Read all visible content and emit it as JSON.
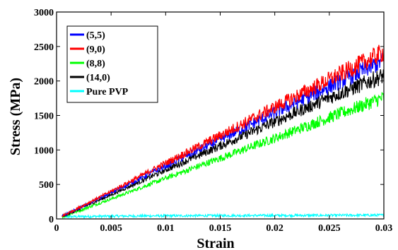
{
  "chart_data": {
    "type": "line",
    "xlabel": "Strain",
    "ylabel": "Stress (MPa)",
    "xlim": [
      0,
      0.03
    ],
    "ylim": [
      0,
      3000
    ],
    "xticks": [
      0,
      0.005,
      0.01,
      0.015,
      0.02,
      0.025,
      0.03
    ],
    "xtick_labels": [
      "0",
      "0.005",
      "0.01",
      "0.015",
      "0.02",
      "0.025",
      "0.03"
    ],
    "yticks": [
      0,
      500,
      1000,
      1500,
      2000,
      2500,
      3000
    ],
    "ytick_labels": [
      "0",
      "500",
      "1000",
      "1500",
      "2000",
      "2500",
      "3000"
    ],
    "grid": false,
    "legend_position": "top-left",
    "series": [
      {
        "name": "(5,5)",
        "color": "#0000ff",
        "x": [
          0,
          0.005,
          0.01,
          0.015,
          0.02,
          0.025,
          0.03
        ],
        "values": [
          0,
          380,
          770,
          1150,
          1540,
          1920,
          2300
        ]
      },
      {
        "name": "(9,0)",
        "color": "#ff0000",
        "x": [
          0,
          0.005,
          0.01,
          0.015,
          0.02,
          0.025,
          0.03
        ],
        "values": [
          0,
          400,
          810,
          1210,
          1620,
          2020,
          2420
        ]
      },
      {
        "name": "(8,8)",
        "color": "#00ff00",
        "x": [
          0,
          0.005,
          0.01,
          0.015,
          0.02,
          0.025,
          0.03
        ],
        "values": [
          0,
          290,
          590,
          880,
          1170,
          1470,
          1760
        ]
      },
      {
        "name": "(14,0)",
        "color": "#000000",
        "x": [
          0,
          0.005,
          0.01,
          0.015,
          0.02,
          0.025,
          0.03
        ],
        "values": [
          0,
          350,
          710,
          1060,
          1410,
          1760,
          2080
        ]
      },
      {
        "name": "Pure PVP",
        "color": "#00ffff",
        "x": [
          0,
          0.005,
          0.01,
          0.015,
          0.02,
          0.025,
          0.03
        ],
        "values": [
          30,
          40,
          45,
          48,
          50,
          52,
          55
        ]
      }
    ]
  }
}
